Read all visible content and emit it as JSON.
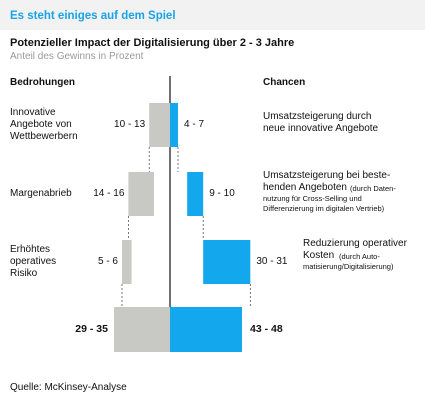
{
  "header": {
    "kicker": "Es steht einiges auf dem Spiel"
  },
  "chart_data": {
    "type": "bar",
    "title": "Potenzieller Impact der Digitalisierung über 2 - 3 Jahre",
    "subtitle": "Anteil des Gewinns in Prozent",
    "left_header": "Bedrohungen",
    "right_header": "Chancen",
    "threats": [
      {
        "label_lines": [
          "Innovative",
          "Angebote von",
          "Wettbewerbern"
        ],
        "range": "10 - 13",
        "min": 10,
        "max": 13
      },
      {
        "label_lines": [
          "Margenabrieb"
        ],
        "range": "14 - 16",
        "min": 14,
        "max": 16
      },
      {
        "label_lines": [
          "Erhöhtes",
          "operatives",
          "Risiko"
        ],
        "range": "5 - 6",
        "min": 5,
        "max": 6
      }
    ],
    "threat_total": {
      "range": "29 - 35",
      "min": 29,
      "max": 35
    },
    "chances": [
      {
        "label_lines": [
          "Umsatzsteigerung durch",
          "neue innovative Angebote"
        ],
        "detail_lines": [],
        "range": "4 - 7",
        "min": 4,
        "max": 7
      },
      {
        "label_lines": [
          "Umsatzsteigerung bei beste-",
          "henden Angeboten"
        ],
        "detail_lines": [
          "(durch Daten-",
          "nutzung für Cross-Selling und",
          "Differenzierung im digitalen Vertrieb)"
        ],
        "range": "9 - 10",
        "min": 9,
        "max": 10
      },
      {
        "label_lines": [
          "Reduzierung operativer",
          "Kosten"
        ],
        "detail_lines": [
          "(durch Auto-",
          "matisierung/Digitalisierung)"
        ],
        "range": "30 - 31",
        "min": 30,
        "max": 31
      }
    ],
    "chance_total": {
      "range": "43 - 48",
      "min": 43,
      "max": 48
    },
    "colors": {
      "threat": "#c8c9c4",
      "chance": "#13a7ee",
      "accent": "#1aa3e6"
    }
  },
  "footer": {
    "source": "Quelle: McKinsey-Analyse"
  }
}
